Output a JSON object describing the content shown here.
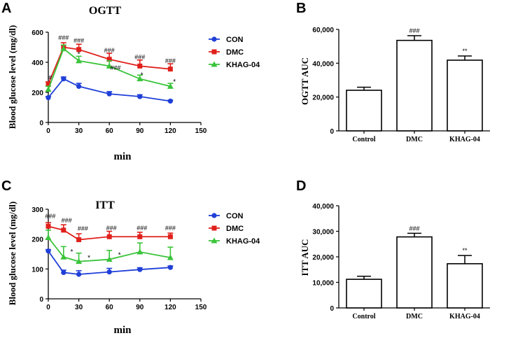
{
  "colors": {
    "CON": "#1f3fd8",
    "DMC": "#e0201b",
    "KHAG-04": "#3ac43a"
  },
  "chart_data": [
    {
      "panel": "A",
      "type": "line",
      "title": "OGTT",
      "xlabel": "min",
      "ylabel": "Blood glucose level (mg/dl)",
      "xlim": [
        0,
        150
      ],
      "ylim": [
        0,
        600
      ],
      "xticks": [
        "0",
        "30",
        "60",
        "90",
        "120",
        "150"
      ],
      "yticks": [
        "0",
        "200",
        "400",
        "600"
      ],
      "x": [
        0,
        15,
        30,
        60,
        90,
        120
      ],
      "legend": "top-right",
      "series": [
        {
          "name": "CON",
          "values": [
            165,
            290,
            240,
            190,
            172,
            142
          ],
          "errors": [
            8,
            12,
            20,
            15,
            12,
            6
          ]
        },
        {
          "name": "DMC",
          "values": [
            255,
            500,
            485,
            420,
            375,
            355
          ],
          "errors": [
            15,
            30,
            35,
            40,
            40,
            35
          ]
        },
        {
          "name": "KHAG-04",
          "values": [
            220,
            490,
            410,
            375,
            290,
            240
          ],
          "errors": [
            20,
            25,
            30,
            35,
            25,
            20
          ]
        }
      ],
      "annotations": [
        {
          "text": "###",
          "x": 15,
          "y": 550
        },
        {
          "text": "###",
          "x": 30,
          "y": 530
        },
        {
          "text": "###",
          "x": 60,
          "y": 465
        },
        {
          "text": "###",
          "x": 90,
          "y": 420
        },
        {
          "text": "###",
          "x": 120,
          "y": 395
        },
        {
          "text": "*",
          "x": 30,
          "y": 440
        },
        {
          "text": "###",
          "x": 66,
          "y": 350
        },
        {
          "text": "*",
          "x": 92,
          "y": 300
        },
        {
          "text": "*",
          "x": 124,
          "y": 255
        },
        {
          "text": "#",
          "x": 2,
          "y": 285
        }
      ]
    },
    {
      "panel": "B",
      "type": "bar",
      "title": "",
      "categories": [
        "Control",
        "DMC",
        "KHAG-04"
      ],
      "values": [
        24000,
        53500,
        41800
      ],
      "errors": [
        1800,
        2800,
        2500
      ],
      "ylabel": "OGTT AUC",
      "xlabel": "",
      "ylim": [
        0,
        60000
      ],
      "yticks": [
        "0",
        "20,000",
        "40,000",
        "60,000"
      ],
      "labels": [
        "",
        "###",
        "**"
      ]
    },
    {
      "panel": "C",
      "type": "line",
      "title": "ITT",
      "xlabel": "min",
      "ylabel": "Blood glucose level (mg/dl)",
      "xlim": [
        0,
        150
      ],
      "ylim": [
        0,
        300
      ],
      "xticks": [
        "0",
        "30",
        "60",
        "90",
        "120",
        "150"
      ],
      "yticks": [
        "0",
        "100",
        "200",
        "300"
      ],
      "x": [
        0,
        15,
        30,
        60,
        90,
        120
      ],
      "legend": "top-right",
      "series": [
        {
          "name": "CON",
          "values": [
            160,
            88,
            82,
            90,
            98,
            105
          ],
          "errors": [
            5,
            8,
            12,
            12,
            6,
            5
          ]
        },
        {
          "name": "DMC",
          "values": [
            243,
            230,
            198,
            208,
            208,
            208
          ],
          "errors": [
            12,
            18,
            20,
            18,
            15,
            12
          ]
        },
        {
          "name": "KHAG-04",
          "values": [
            205,
            140,
            125,
            132,
            157,
            138
          ],
          "errors": [
            25,
            35,
            28,
            30,
            30,
            35
          ]
        }
      ],
      "annotations": [
        {
          "text": "###",
          "x": 2,
          "y": 270
        },
        {
          "text": "###",
          "x": 18,
          "y": 255
        },
        {
          "text": "###",
          "x": 34,
          "y": 228
        },
        {
          "text": "###",
          "x": 62,
          "y": 230
        },
        {
          "text": "###",
          "x": 92,
          "y": 230
        },
        {
          "text": "###",
          "x": 120,
          "y": 230
        },
        {
          "text": "*",
          "x": 23,
          "y": 150
        },
        {
          "text": "*",
          "x": 40,
          "y": 130
        },
        {
          "text": "*",
          "x": 70,
          "y": 140
        }
      ]
    },
    {
      "panel": "D",
      "type": "bar",
      "title": "",
      "categories": [
        "Control",
        "DMC",
        "KHAG-04"
      ],
      "values": [
        11200,
        27800,
        17300
      ],
      "errors": [
        1200,
        1400,
        3200
      ],
      "ylabel": "ITT AUC",
      "xlabel": "",
      "ylim": [
        0,
        40000
      ],
      "yticks": [
        "0",
        "10,000",
        "20,000",
        "30,000",
        "40,000"
      ],
      "labels": [
        "",
        "###",
        "**"
      ]
    }
  ]
}
